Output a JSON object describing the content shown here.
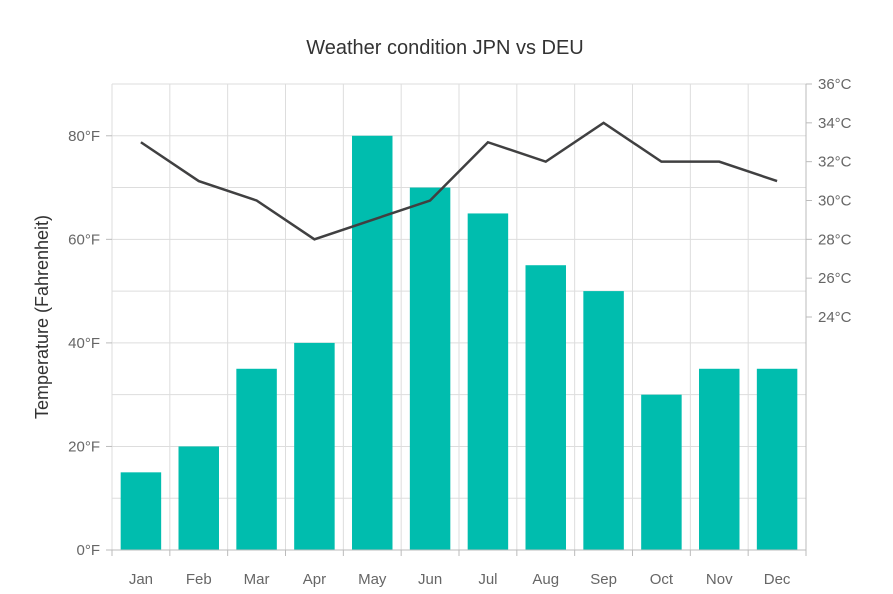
{
  "chart_data": {
    "type": "bar",
    "title": "Weather condition JPN vs DEU",
    "categories": [
      "Jan",
      "Feb",
      "Mar",
      "Apr",
      "May",
      "Jun",
      "Jul",
      "Aug",
      "Sep",
      "Oct",
      "Nov",
      "Dec"
    ],
    "series": [
      {
        "type": "bar",
        "axis": "left",
        "color": "#00bdae",
        "values": [
          15,
          20,
          35,
          40,
          80,
          70,
          65,
          55,
          50,
          30,
          35,
          35
        ]
      },
      {
        "type": "line",
        "axis": "right",
        "color": "#404041",
        "values": [
          33,
          31,
          30,
          28,
          29,
          30,
          33,
          32,
          34,
          32,
          32,
          31
        ]
      }
    ],
    "ylabel": "Temperature (Fahrenheit)",
    "ylim": [
      0,
      90
    ],
    "yticks": [
      0,
      20,
      40,
      60,
      80
    ],
    "ytick_labels": [
      "0°F",
      "20°F",
      "40°F",
      "60°F",
      "80°F"
    ],
    "y2lim": [
      24,
      36
    ],
    "y2ticks": [
      24,
      26,
      28,
      30,
      32,
      34,
      36
    ],
    "y2tick_labels": [
      "24°C",
      "26°C",
      "28°C",
      "30°C",
      "32°C",
      "34°C",
      "36°C"
    ],
    "grid": true,
    "legend": "none"
  }
}
